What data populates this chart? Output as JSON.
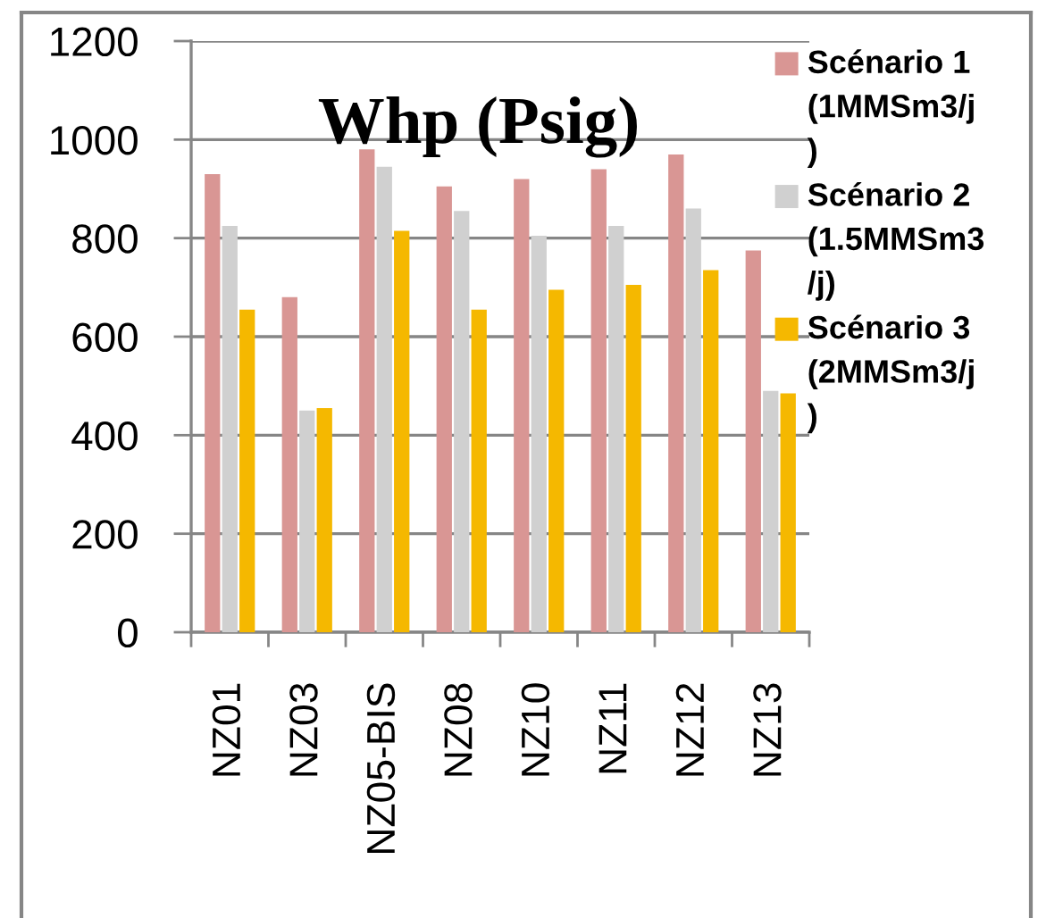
{
  "chart_data": {
    "type": "bar",
    "title": "Whp (Psig)",
    "categories": [
      "NZ01",
      "NZ03",
      "NZ05-BIS",
      "NZ08",
      "NZ10",
      "NZ11",
      "NZ12",
      "NZ13"
    ],
    "series": [
      {
        "name": "Scénario 1\n(1MMSm3/j\n)",
        "color": "#d99694",
        "values": [
          930,
          680,
          980,
          905,
          920,
          940,
          970,
          775
        ]
      },
      {
        "name": "Scénario 2\n(1.5MMSm3\n/j)",
        "color": "#d0d0d0",
        "values": [
          825,
          450,
          945,
          855,
          805,
          825,
          860,
          490
        ]
      },
      {
        "name": "Scénario 3\n(2MMSm3/j\n)",
        "color": "#f5b800",
        "values": [
          655,
          455,
          815,
          655,
          695,
          705,
          735,
          485
        ]
      }
    ],
    "ylim": [
      0,
      1200
    ],
    "yticks": [
      0,
      200,
      400,
      600,
      800,
      1000,
      1200
    ],
    "grid": "y",
    "legend": "right"
  }
}
